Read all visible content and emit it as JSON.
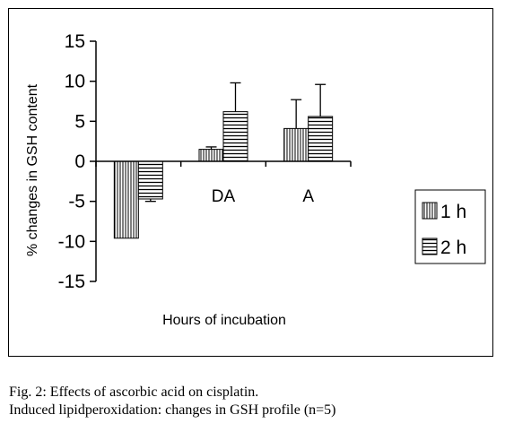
{
  "caption": {
    "line1": "Fig. 2: Effects of ascorbic acid on cisplatin.",
    "line2": "Induced lipidperoxidation: changes in GSH profile (n=5)"
  },
  "chart_data": {
    "type": "bar",
    "title": "",
    "xlabel": "Hours of incubation",
    "ylabel": "% changes in GSH content",
    "ylim": [
      -15,
      15
    ],
    "yticks": [
      15,
      10,
      5,
      0,
      -5,
      -10,
      -15
    ],
    "categories": [
      "",
      "DA",
      "A"
    ],
    "series": [
      {
        "name": "1 h",
        "values": [
          -9.6,
          1.5,
          4.1
        ],
        "errors": [
          0,
          0.3,
          3.6
        ],
        "pattern": "vertical-stripes"
      },
      {
        "name": "2 h",
        "values": [
          -4.7,
          6.2,
          5.6
        ],
        "errors": [
          0.3,
          3.6,
          4.0
        ],
        "pattern": "horizontal-stripes"
      }
    ],
    "grid": false,
    "legend_position": "right",
    "colors": {
      "bar_fill": "#ffffff",
      "stroke": "#000000"
    }
  }
}
